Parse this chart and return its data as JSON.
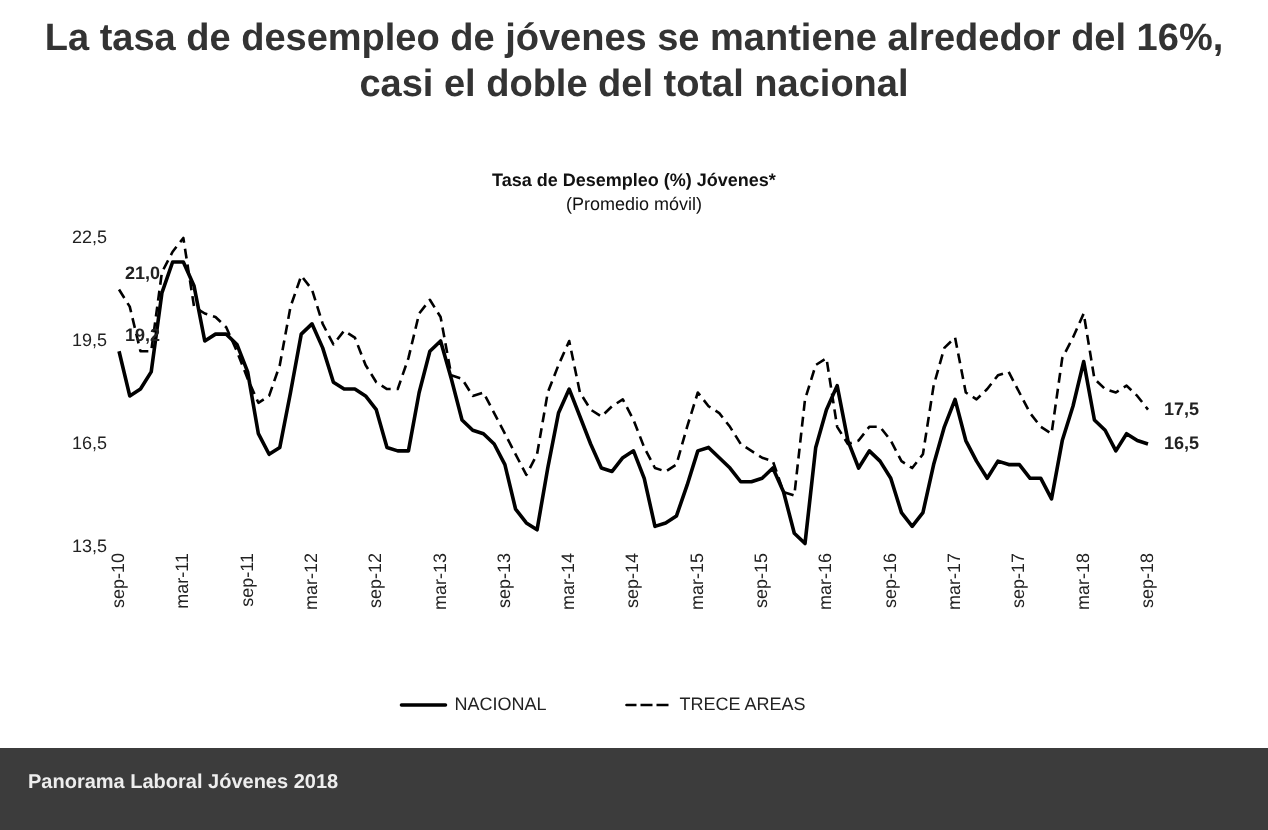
{
  "chart_data": {
    "type": "line",
    "title": "La tasa de desempleo de jóvenes se mantiene alrededor del 16%, casi el doble del total nacional",
    "subtitle": "Tasa de Desempleo (%) Jóvenes*",
    "annotations": [
      "(Promedio móvil)",
      "Panorama Laboral Jóvenes 2018"
    ],
    "categories": [
      "sep-10",
      null,
      null,
      null,
      null,
      null,
      "mar-11",
      null,
      null,
      null,
      null,
      null,
      "sep-11",
      null,
      null,
      null,
      null,
      null,
      "mar-12",
      null,
      null,
      null,
      null,
      null,
      "sep-12",
      null,
      null,
      null,
      null,
      null,
      "mar-13",
      null,
      null,
      null,
      null,
      null,
      "sep-13",
      null,
      null,
      null,
      null,
      null,
      "mar-14",
      null,
      null,
      null,
      null,
      null,
      "sep-14",
      null,
      null,
      null,
      null,
      null,
      "mar-15",
      null,
      null,
      null,
      null,
      null,
      "sep-15",
      null,
      null,
      null,
      null,
      null,
      "mar-16",
      null,
      null,
      null,
      null,
      null,
      "sep-16",
      null,
      null,
      null,
      null,
      null,
      "mar-17",
      null,
      null,
      null,
      null,
      null,
      "sep-17",
      null,
      null,
      null,
      null,
      null,
      "mar-18",
      null,
      null,
      null,
      null,
      null,
      "sep-18"
    ],
    "series": [
      {
        "name": "NACIONAL",
        "color": "#000000",
        "line_style": "solid",
        "values": [
          19.2,
          17.9,
          18.1,
          18.6,
          20.9,
          21.8,
          21.8,
          21.1,
          19.5,
          19.7,
          19.7,
          19.4,
          18.6,
          16.8,
          16.2,
          16.4,
          18.0,
          19.7,
          20.0,
          19.3,
          18.3,
          18.1,
          18.1,
          17.9,
          17.5,
          16.4,
          16.3,
          16.3,
          18.0,
          19.2,
          19.5,
          18.4,
          17.2,
          16.9,
          16.8,
          16.5,
          15.9,
          14.6,
          14.2,
          14.0,
          15.8,
          17.4,
          18.1,
          17.3,
          16.5,
          15.8,
          15.7,
          16.1,
          16.3,
          15.5,
          14.1,
          14.2,
          14.4,
          15.3,
          16.3,
          16.4,
          16.1,
          15.8,
          15.4,
          15.4,
          15.5,
          15.8,
          15.1,
          13.9,
          13.6,
          16.4,
          17.5,
          18.2,
          16.6,
          15.8,
          16.3,
          16.0,
          15.5,
          14.5,
          14.1,
          14.5,
          15.9,
          17.0,
          17.8,
          16.6,
          16.0,
          15.5,
          16.0,
          15.9,
          15.9,
          15.5,
          15.5,
          14.9,
          16.6,
          17.6,
          18.9,
          17.2,
          16.9,
          16.3,
          16.8,
          16.6,
          16.5
        ],
        "value_labels": [
          "19,2",
          null,
          null,
          null,
          null,
          null,
          null,
          null,
          null,
          null,
          null,
          null,
          null,
          null,
          null,
          null,
          null,
          null,
          null,
          null,
          null,
          null,
          null,
          null,
          null,
          null,
          null,
          null,
          null,
          null,
          null,
          null,
          null,
          null,
          null,
          null,
          null,
          null,
          null,
          null,
          null,
          null,
          null,
          null,
          null,
          null,
          null,
          null,
          null,
          null,
          null,
          null,
          null,
          null,
          null,
          null,
          null,
          null,
          null,
          null,
          null,
          null,
          null,
          null,
          null,
          null,
          null,
          null,
          null,
          null,
          null,
          null,
          null,
          null,
          null,
          null,
          null,
          null,
          null,
          null,
          null,
          null,
          null,
          null,
          null,
          null,
          null,
          null,
          null,
          null,
          null,
          null,
          null,
          null,
          null,
          null,
          "16,5"
        ]
      },
      {
        "name": "TRECE AREAS",
        "color": "#000000",
        "line_style": "dashed",
        "values": [
          21.0,
          20.5,
          19.2,
          19.2,
          21.5,
          22.1,
          22.5,
          20.5,
          20.3,
          20.2,
          19.9,
          19.2,
          18.4,
          17.7,
          17.9,
          18.8,
          20.5,
          21.4,
          21.0,
          20.0,
          19.4,
          19.8,
          19.6,
          18.8,
          18.3,
          18.1,
          18.1,
          19.0,
          20.3,
          20.7,
          20.2,
          18.5,
          18.4,
          17.9,
          18.0,
          17.4,
          16.8,
          16.2,
          15.6,
          16.2,
          18.0,
          18.8,
          19.5,
          18.0,
          17.5,
          17.3,
          17.6,
          17.8,
          17.2,
          16.4,
          15.8,
          15.7,
          15.9,
          17.0,
          18.0,
          17.6,
          17.4,
          17.0,
          16.5,
          16.3,
          16.1,
          16.0,
          15.1,
          15.0,
          17.8,
          18.8,
          19.0,
          17.0,
          16.5,
          16.6,
          17.0,
          17.0,
          16.6,
          16.0,
          15.8,
          16.2,
          18.2,
          19.3,
          19.6,
          18.0,
          17.8,
          18.1,
          18.5,
          18.6,
          18.0,
          17.4,
          17.0,
          16.8,
          19.0,
          19.6,
          20.3,
          18.4,
          18.1,
          18.0,
          18.2,
          17.9,
          17.5
        ],
        "value_labels": [
          "21,0",
          null,
          null,
          null,
          null,
          null,
          null,
          null,
          null,
          null,
          null,
          null,
          null,
          null,
          null,
          null,
          null,
          null,
          null,
          null,
          null,
          null,
          null,
          null,
          null,
          null,
          null,
          null,
          null,
          null,
          null,
          null,
          null,
          null,
          null,
          null,
          null,
          null,
          null,
          null,
          null,
          null,
          null,
          null,
          null,
          null,
          null,
          null,
          null,
          null,
          null,
          null,
          null,
          null,
          null,
          null,
          null,
          null,
          null,
          null,
          null,
          null,
          null,
          null,
          null,
          null,
          null,
          null,
          null,
          null,
          null,
          null,
          null,
          null,
          null,
          null,
          null,
          null,
          null,
          null,
          null,
          null,
          null,
          null,
          null,
          null,
          null,
          null,
          null,
          null,
          null,
          null,
          null,
          null,
          null,
          null,
          "17,5"
        ]
      }
    ],
    "ylim": [
      13.5,
      22.5
    ],
    "yticks": [
      {
        "value": 13.5,
        "label": "13,5"
      },
      {
        "value": 16.5,
        "label": "16,5"
      },
      {
        "value": 19.5,
        "label": "19,5"
      },
      {
        "value": 22.5,
        "label": "22,5"
      }
    ],
    "grid": false,
    "legend": "bottom",
    "marker": "none"
  }
}
